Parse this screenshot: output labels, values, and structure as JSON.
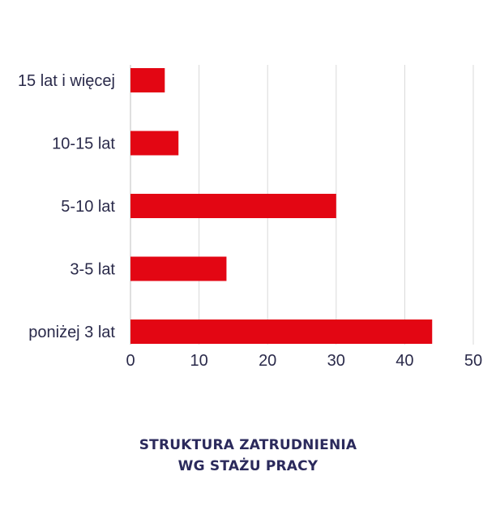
{
  "chart_data": {
    "type": "bar",
    "orientation": "horizontal",
    "categories": [
      "15 lat i więcej",
      "10-15 lat",
      "5-10 lat",
      "3-5 lat",
      "poniżej 3 lat"
    ],
    "values": [
      5,
      7,
      30,
      14,
      44
    ],
    "xlim": [
      0,
      50
    ],
    "xticks": [
      0,
      10,
      20,
      30,
      40,
      50
    ],
    "grid": true,
    "bar_color": "#e30613",
    "title_lines": [
      "STRUKTURA ZATRUDNIENIA",
      "WG STAŻU PRACY"
    ]
  }
}
